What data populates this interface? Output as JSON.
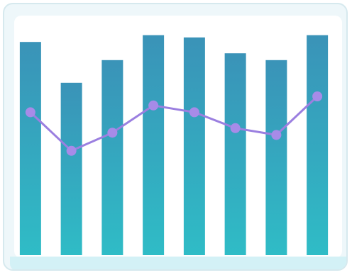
{
  "chart_data": {
    "type": "bar",
    "categories": [
      "",
      "",
      "",
      "",
      "",
      "",
      "",
      ""
    ],
    "series": [
      {
        "type": "bar",
        "values": [
          94,
          76,
          86,
          97,
          96,
          89,
          86,
          97
        ]
      },
      {
        "type": "line",
        "values": [
          63,
          46,
          54,
          66,
          63,
          56,
          53,
          70
        ]
      }
    ],
    "ylim": [
      0,
      100
    ],
    "grid": false,
    "legend": "none",
    "title": "",
    "xlabel": "",
    "ylabel": ""
  },
  "colors": {
    "bar_top": "#3a93b8",
    "bar_bottom": "#2fbcc6",
    "line": "#9b7fe0",
    "marker": "#a78be8"
  }
}
